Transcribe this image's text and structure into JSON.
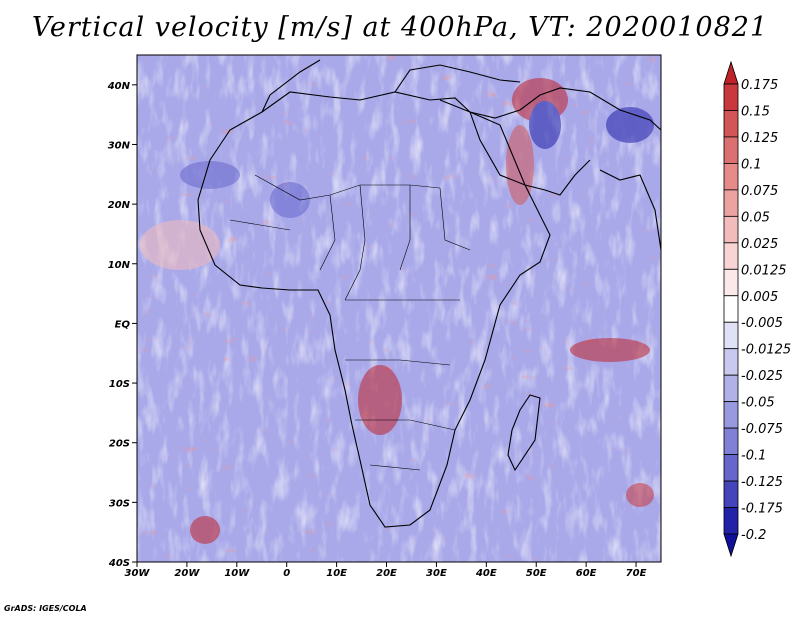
{
  "title": "Vertical velocity [m/s] at 400hPa, VT: 2020010821",
  "credit": "GrADS: IGES/COLA",
  "map": {
    "lon_labels": [
      "30W",
      "20W",
      "10W",
      "0",
      "10E",
      "20E",
      "30E",
      "40E",
      "50E",
      "60E",
      "70E"
    ],
    "lat_labels": [
      "40N",
      "30N",
      "20N",
      "10N",
      "EQ",
      "10S",
      "20S",
      "30S",
      "40S"
    ],
    "lon_range": [
      -30,
      75
    ],
    "lat_range": [
      -40,
      45
    ]
  },
  "colorbar": {
    "labels": [
      "0.175",
      "0.15",
      "0.125",
      "0.1",
      "0.075",
      "0.05",
      "0.025",
      "0.0125",
      "0.005",
      "-0.005",
      "-0.0125",
      "-0.025",
      "-0.05",
      "-0.075",
      "-0.1",
      "-0.125",
      "-0.175",
      "-0.2"
    ],
    "colors": [
      "#c0222a",
      "#c8383d",
      "#d25656",
      "#dc7070",
      "#e68a8a",
      "#eda2a2",
      "#f3bcbc",
      "#f8d4d4",
      "#fbe8e8",
      "#ffffff",
      "#e0e0f6",
      "#c9c9ef",
      "#b1b1e8",
      "#9999e0",
      "#8080d6",
      "#6666cc",
      "#4444bb",
      "#2222a8",
      "#10109a"
    ]
  }
}
